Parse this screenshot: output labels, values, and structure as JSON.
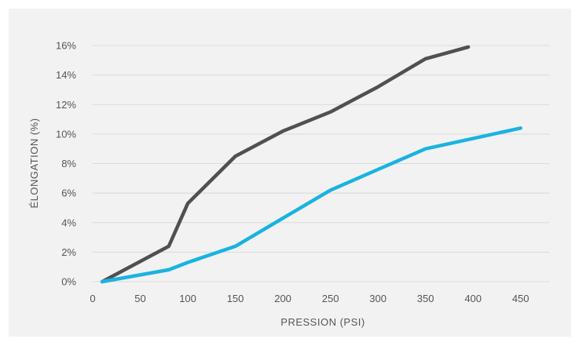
{
  "chart_data": {
    "type": "line",
    "title": "",
    "xlabel": "PRESSION (PSI)",
    "ylabel": "ÉLONGATION (%)",
    "xlim": [
      0,
      480
    ],
    "ylim": [
      0,
      16
    ],
    "x_ticks": [
      0,
      50,
      100,
      150,
      200,
      250,
      300,
      350,
      400,
      450
    ],
    "y_ticks": [
      0,
      2,
      4,
      6,
      8,
      10,
      12,
      14,
      16
    ],
    "y_tick_suffix": "%",
    "grid": "horizontal",
    "legend": "none",
    "series": [
      {
        "color": "#505050",
        "points": [
          [
            10,
            0
          ],
          [
            80,
            2.4
          ],
          [
            100,
            5.3
          ],
          [
            150,
            8.5
          ],
          [
            200,
            10.2
          ],
          [
            250,
            11.5
          ],
          [
            300,
            13.2
          ],
          [
            350,
            15.1
          ],
          [
            395,
            15.9
          ]
        ]
      },
      {
        "color": "#1ab3e0",
        "points": [
          [
            10,
            0
          ],
          [
            80,
            0.8
          ],
          [
            100,
            1.3
          ],
          [
            150,
            2.4
          ],
          [
            200,
            4.3
          ],
          [
            250,
            6.2
          ],
          [
            300,
            7.6
          ],
          [
            350,
            9.0
          ],
          [
            450,
            10.4
          ]
        ]
      }
    ]
  }
}
